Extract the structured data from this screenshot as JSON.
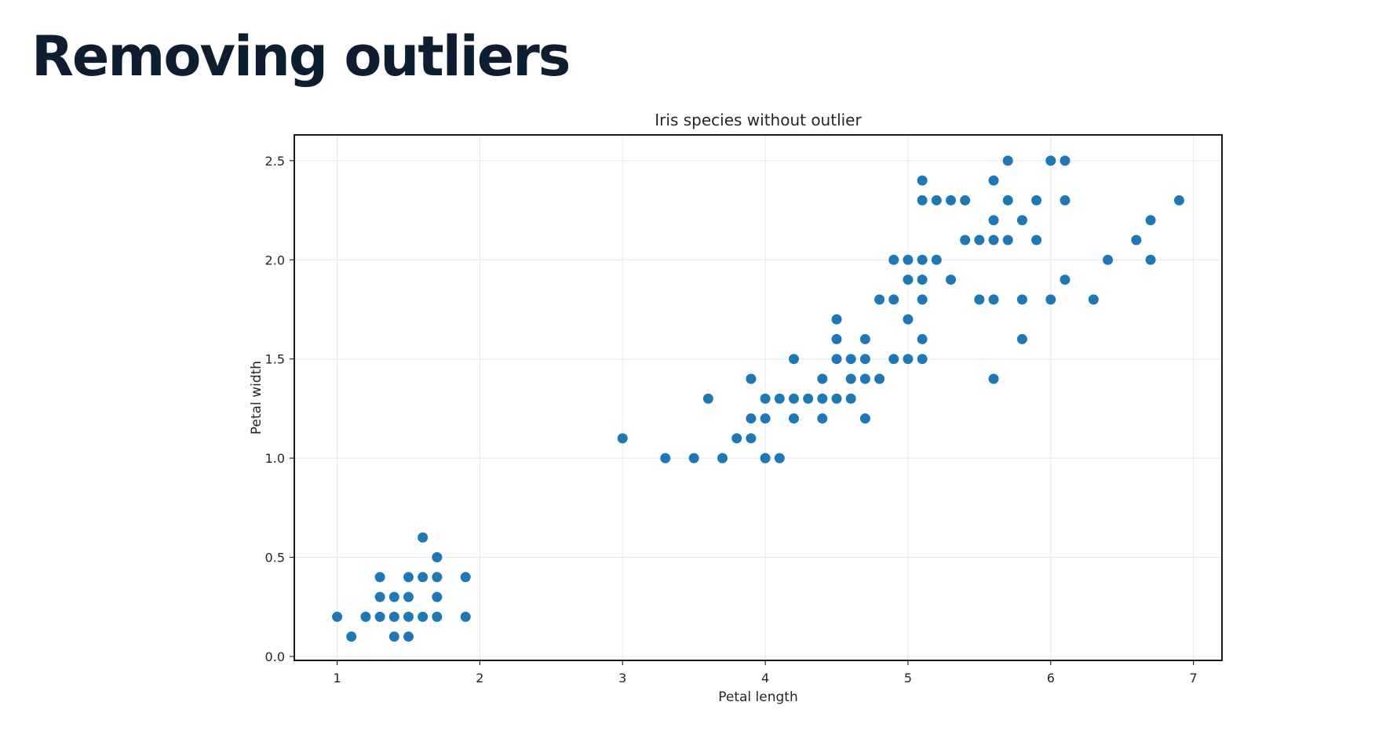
{
  "slide": {
    "title": "Removing outliers"
  },
  "colors": {
    "title_text": "#0f1d30",
    "point": "#1f77b4",
    "grid": "#e8e8e8",
    "frame": "#1a1a1a"
  },
  "chart_data": {
    "type": "scatter",
    "title": "Iris species without outlier",
    "xlabel": "Petal length",
    "ylabel": "Petal width",
    "xlim": [
      0.7,
      7.2
    ],
    "ylim": [
      -0.02,
      2.63
    ],
    "xticks": [
      1,
      2,
      3,
      4,
      5,
      6,
      7
    ],
    "yticks": [
      "0.0",
      "0.5",
      "1.0",
      "1.5",
      "2.0",
      "2.5"
    ],
    "grid": true,
    "legend": "none",
    "points": [
      [
        1.0,
        0.2
      ],
      [
        1.1,
        0.1
      ],
      [
        1.2,
        0.2
      ],
      [
        1.3,
        0.2
      ],
      [
        1.3,
        0.3
      ],
      [
        1.3,
        0.4
      ],
      [
        1.4,
        0.1
      ],
      [
        1.4,
        0.2
      ],
      [
        1.4,
        0.3
      ],
      [
        1.5,
        0.1
      ],
      [
        1.5,
        0.2
      ],
      [
        1.5,
        0.3
      ],
      [
        1.5,
        0.4
      ],
      [
        1.6,
        0.2
      ],
      [
        1.6,
        0.4
      ],
      [
        1.6,
        0.6
      ],
      [
        1.7,
        0.2
      ],
      [
        1.7,
        0.3
      ],
      [
        1.7,
        0.4
      ],
      [
        1.7,
        0.5
      ],
      [
        1.9,
        0.2
      ],
      [
        1.9,
        0.4
      ],
      [
        3.0,
        1.1
      ],
      [
        3.3,
        1.0
      ],
      [
        3.5,
        1.0
      ],
      [
        3.6,
        1.3
      ],
      [
        3.7,
        1.0
      ],
      [
        3.8,
        1.1
      ],
      [
        3.9,
        1.1
      ],
      [
        3.9,
        1.2
      ],
      [
        3.9,
        1.4
      ],
      [
        4.0,
        1.0
      ],
      [
        4.0,
        1.2
      ],
      [
        4.0,
        1.3
      ],
      [
        4.1,
        1.0
      ],
      [
        4.1,
        1.3
      ],
      [
        4.2,
        1.2
      ],
      [
        4.2,
        1.3
      ],
      [
        4.2,
        1.5
      ],
      [
        4.3,
        1.3
      ],
      [
        4.4,
        1.2
      ],
      [
        4.4,
        1.3
      ],
      [
        4.4,
        1.4
      ],
      [
        4.5,
        1.3
      ],
      [
        4.5,
        1.5
      ],
      [
        4.5,
        1.6
      ],
      [
        4.5,
        1.7
      ],
      [
        4.6,
        1.3
      ],
      [
        4.6,
        1.4
      ],
      [
        4.6,
        1.5
      ],
      [
        4.7,
        1.2
      ],
      [
        4.7,
        1.4
      ],
      [
        4.7,
        1.5
      ],
      [
        4.7,
        1.6
      ],
      [
        4.8,
        1.4
      ],
      [
        4.8,
        1.8
      ],
      [
        4.9,
        1.5
      ],
      [
        4.9,
        1.8
      ],
      [
        4.9,
        2.0
      ],
      [
        5.0,
        1.5
      ],
      [
        5.0,
        1.7
      ],
      [
        5.0,
        1.9
      ],
      [
        5.0,
        2.0
      ],
      [
        5.1,
        1.5
      ],
      [
        5.1,
        1.6
      ],
      [
        5.1,
        1.8
      ],
      [
        5.1,
        1.9
      ],
      [
        5.1,
        2.0
      ],
      [
        5.1,
        2.3
      ],
      [
        5.1,
        2.4
      ],
      [
        5.2,
        2.0
      ],
      [
        5.2,
        2.3
      ],
      [
        5.3,
        1.9
      ],
      [
        5.3,
        2.3
      ],
      [
        5.4,
        2.1
      ],
      [
        5.4,
        2.3
      ],
      [
        5.5,
        1.8
      ],
      [
        5.5,
        2.1
      ],
      [
        5.6,
        1.4
      ],
      [
        5.6,
        1.8
      ],
      [
        5.6,
        2.1
      ],
      [
        5.6,
        2.2
      ],
      [
        5.6,
        2.4
      ],
      [
        5.7,
        2.1
      ],
      [
        5.7,
        2.3
      ],
      [
        5.7,
        2.5
      ],
      [
        5.8,
        1.6
      ],
      [
        5.8,
        1.8
      ],
      [
        5.8,
        2.2
      ],
      [
        5.9,
        2.1
      ],
      [
        5.9,
        2.3
      ],
      [
        6.0,
        1.8
      ],
      [
        6.0,
        2.5
      ],
      [
        6.1,
        1.9
      ],
      [
        6.1,
        2.3
      ],
      [
        6.1,
        2.5
      ],
      [
        6.3,
        1.8
      ],
      [
        6.4,
        2.0
      ],
      [
        6.6,
        2.1
      ],
      [
        6.7,
        2.0
      ],
      [
        6.7,
        2.2
      ],
      [
        6.9,
        2.3
      ]
    ]
  }
}
